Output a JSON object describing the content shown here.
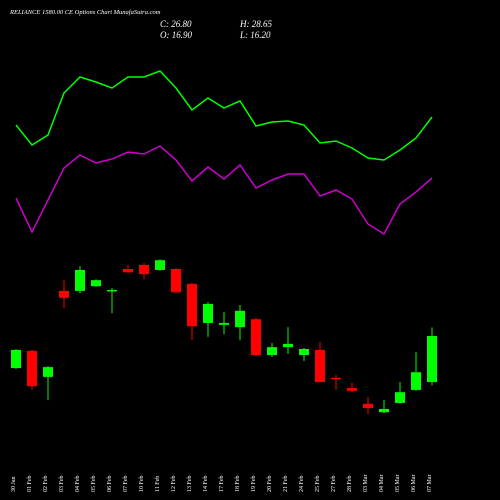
{
  "chart_data": {
    "type": "candlestick",
    "title": "RELIANCE 1580.00 CE Options Chart MunafaSutra.com",
    "ohlc_text": [
      "C: 26.80",
      "H: 28.65",
      "O: 16.90",
      "L: 16.20"
    ],
    "categories": [
      "30 Jan",
      "01 Feb",
      "02 Feb",
      "03 Feb",
      "04 Feb",
      "05 Feb",
      "06 Feb",
      "07 Feb",
      "10 Feb",
      "11 Feb",
      "12 Feb",
      "13 Feb",
      "14 Feb",
      "17 Feb",
      "18 Feb",
      "19 Feb",
      "20 Feb",
      "21 Feb",
      "24 Feb",
      "25 Feb",
      "27 Feb",
      "28 Feb",
      "03 Mar",
      "04 Mar",
      "05 Mar",
      "06 Mar",
      "07 Mar"
    ],
    "open": [
      19.9,
      23.6,
      18.0,
      36.5,
      36.5,
      37.5,
      36.5,
      41.2,
      42.1,
      41.0,
      41.2,
      38.0,
      29.6,
      29.2,
      28.7,
      30.4,
      22.7,
      24.4,
      22.7,
      23.8,
      17.8,
      15.6,
      12.2,
      10.4,
      12.4,
      15.2,
      16.9
    ],
    "close": [
      23.8,
      16.0,
      20.1,
      35.0,
      41.0,
      38.8,
      36.7,
      40.5,
      40.1,
      43.1,
      36.2,
      28.9,
      33.7,
      29.6,
      32.2,
      22.7,
      24.4,
      25.1,
      24.0,
      16.9,
      17.5,
      15.0,
      11.3,
      11.1,
      14.7,
      19.0,
      26.8
    ],
    "high": [
      24.0,
      23.8,
      20.3,
      38.8,
      41.8,
      39.0,
      37.1,
      42.1,
      42.5,
      43.3,
      41.4,
      38.2,
      34.1,
      31.9,
      33.5,
      30.7,
      25.3,
      28.7,
      24.2,
      25.5,
      18.4,
      16.7,
      13.7,
      13.0,
      16.9,
      23.3,
      28.65
    ],
    "low": [
      19.7,
      15.2,
      13.0,
      32.8,
      36.0,
      37.3,
      31.7,
      40.3,
      39.0,
      40.8,
      36.0,
      25.9,
      26.6,
      27.2,
      25.9,
      22.5,
      22.3,
      22.9,
      21.4,
      16.7,
      15.2,
      14.7,
      10.0,
      10.2,
      12.2,
      15.0,
      16.2
    ],
    "up_color": "#00ff00",
    "down_color": "#ff0000",
    "ylim": [
      9.8,
      46.8
    ],
    "lines": {
      "ylim": [
        0,
        100
      ],
      "series": [
        {
          "color": "#00ff00",
          "values": [
            57.5,
            47.5,
            52.5,
            73.5,
            81.5,
            79,
            76,
            81.5,
            81.5,
            84.5,
            76,
            65,
            71,
            66,
            69.5,
            57,
            59,
            59.5,
            57.5,
            48.5,
            49.5,
            46,
            41,
            40,
            45,
            51,
            61.5
          ]
        },
        {
          "color": "#cc00cc",
          "values": [
            21,
            4,
            20,
            36,
            42.5,
            38.5,
            40.5,
            44,
            43,
            47,
            40,
            29.5,
            36.5,
            30.5,
            37.5,
            26,
            30,
            33,
            33,
            22,
            25,
            20.5,
            8,
            3,
            18,
            24,
            31
          ]
        }
      ]
    }
  }
}
